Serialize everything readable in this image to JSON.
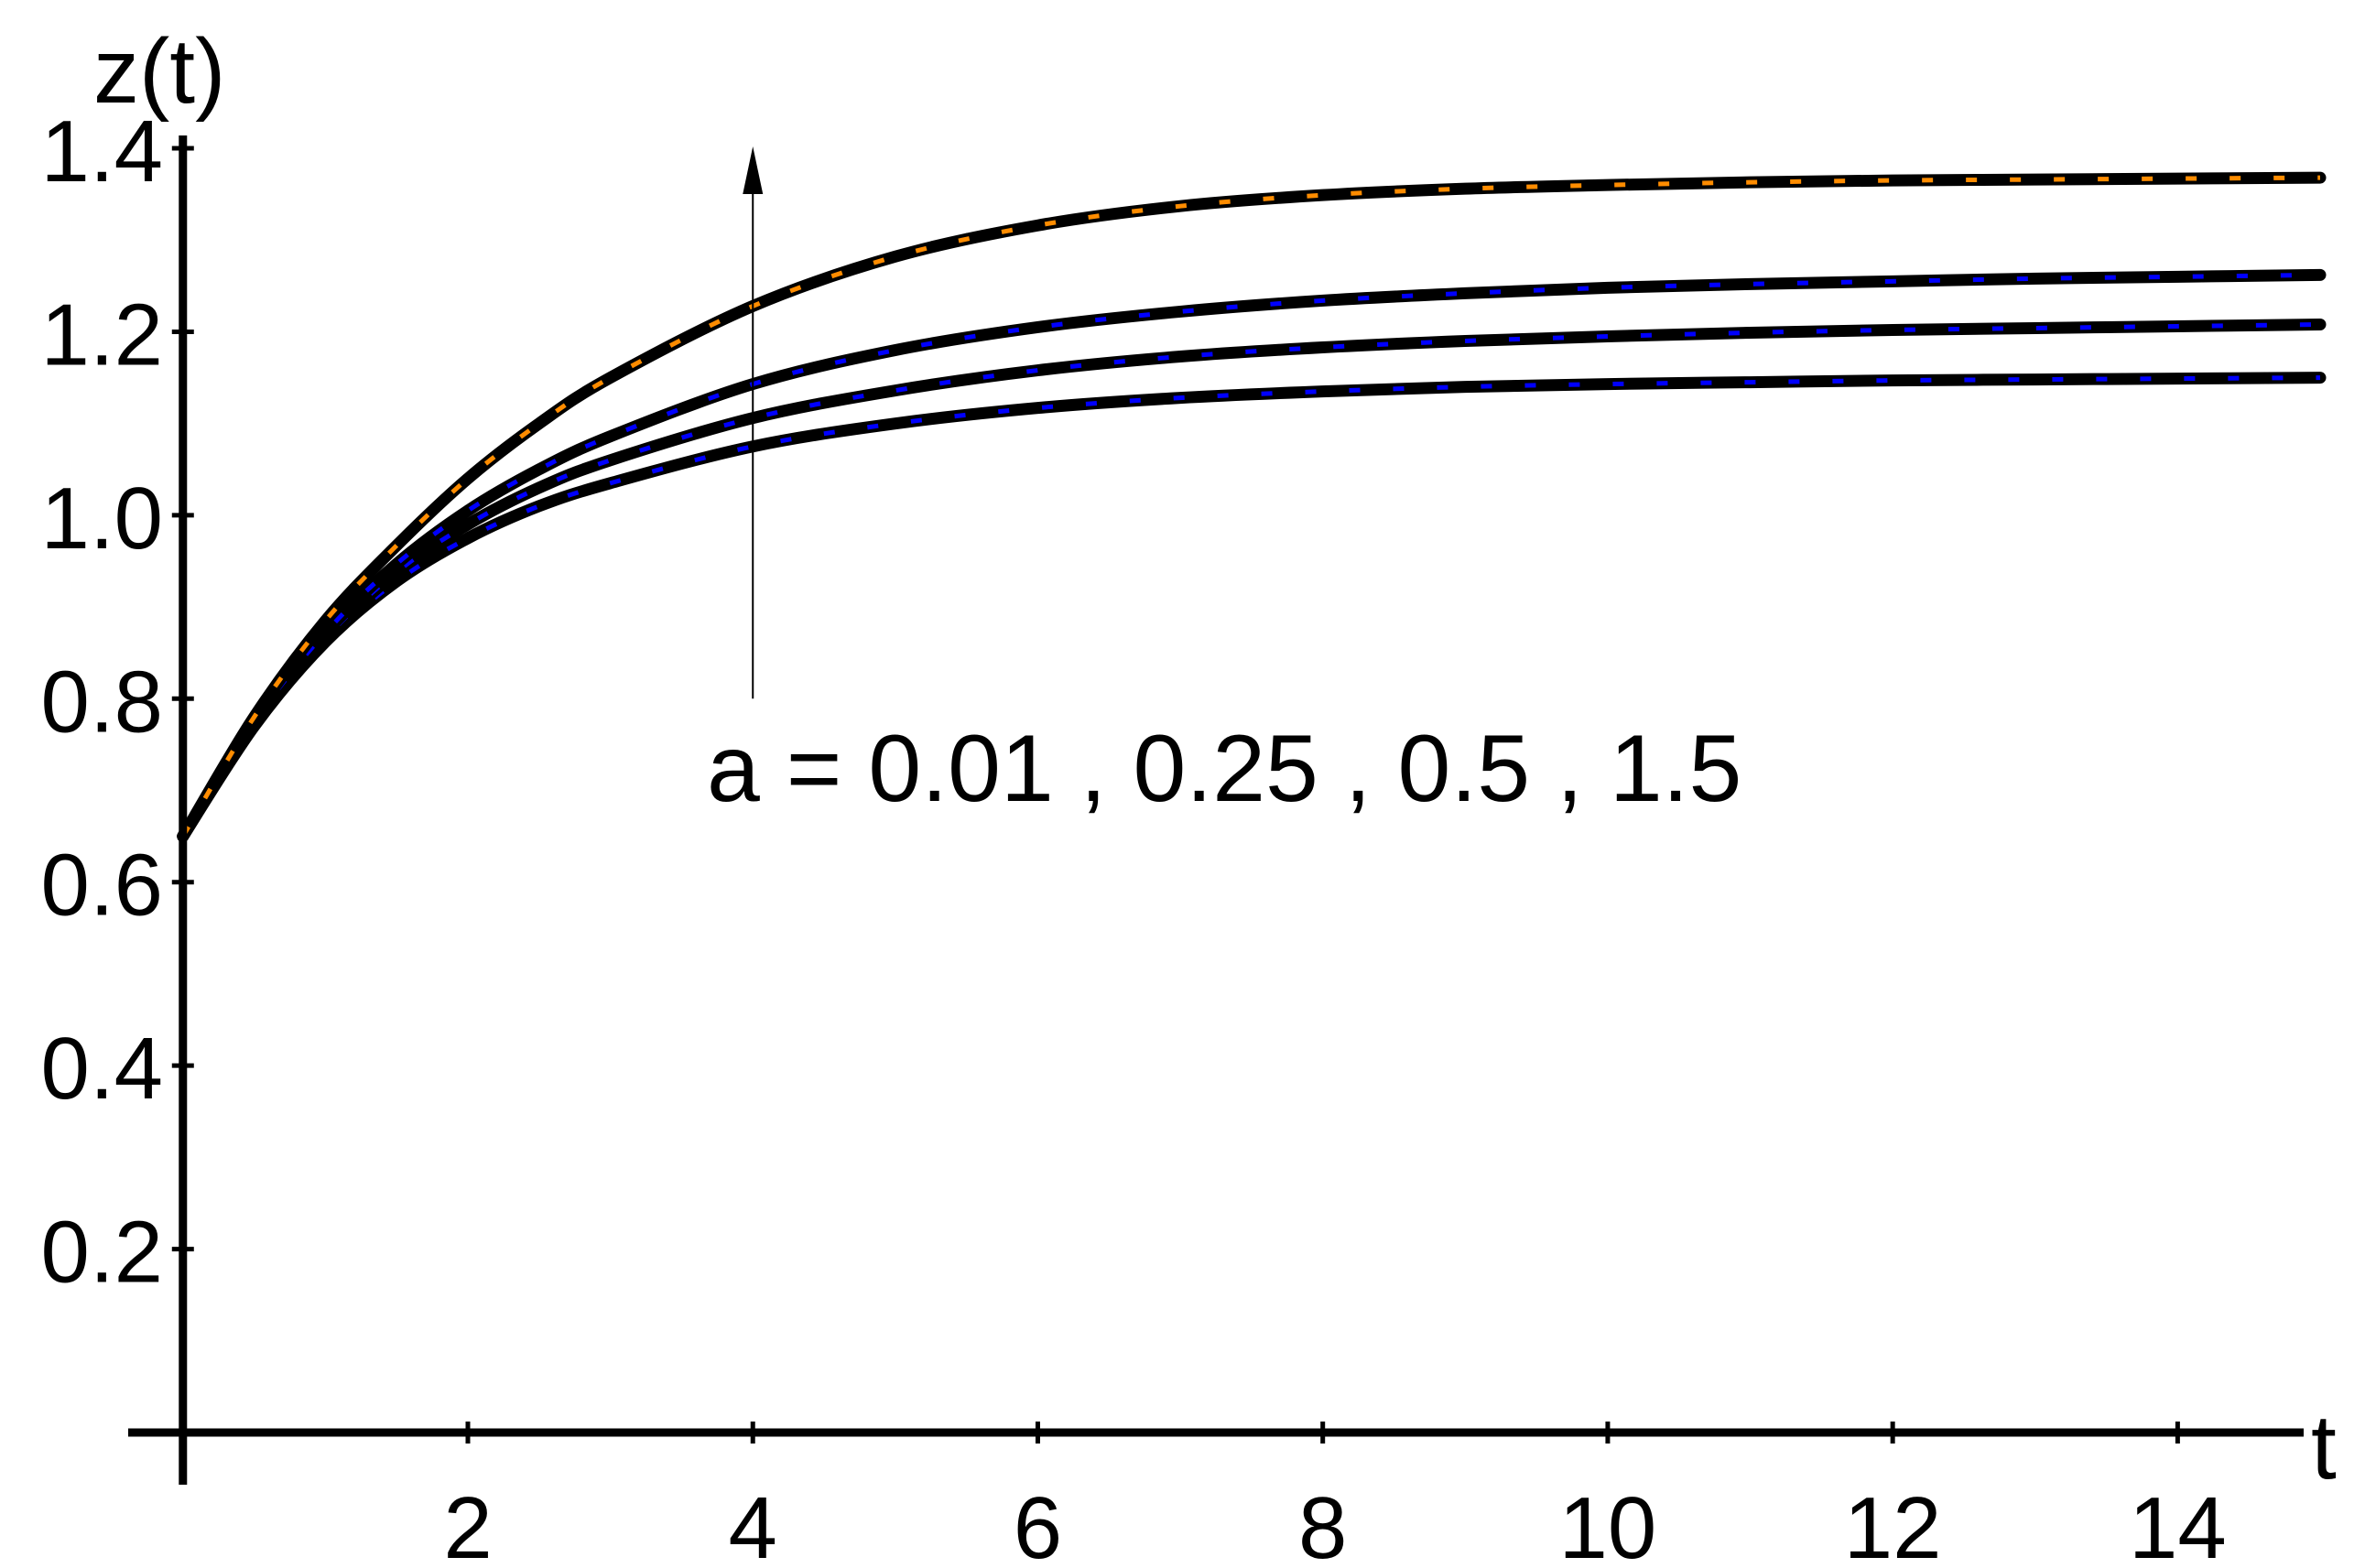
{
  "chart_data": {
    "type": "line",
    "xlabel": "t",
    "ylabel": "z(t)",
    "xlim": [
      -0.05,
      15.0
    ],
    "ylim": [
      0.0,
      1.42
    ],
    "x_ticks": [
      2,
      4,
      6,
      8,
      10,
      12,
      14
    ],
    "x_tick_labels": [
      "2",
      "4",
      "6",
      "8",
      "10",
      "12",
      "14"
    ],
    "y_ticks": [
      0.2,
      0.4,
      0.6,
      0.8,
      1.0,
      1.2,
      1.4
    ],
    "y_tick_labels": [
      "0.2",
      "0.4",
      "0.6",
      "0.8",
      "1.0",
      "1.2",
      "1.4"
    ],
    "grid": false,
    "annotation": {
      "text": "a = 0.01 , 0.25 , 0.5 , 1.5",
      "arrow_x": 4.0,
      "arrow_from_y": 0.8,
      "arrow_to_y": 1.4
    },
    "x": [
      0,
      0.5,
      1,
      1.5,
      2,
      2.5,
      3,
      4,
      5,
      6,
      7,
      8,
      9,
      10,
      11,
      12,
      13,
      14,
      15
    ],
    "series": [
      {
        "values": [
          0.65,
          0.77,
          0.862,
          0.928,
          0.975,
          1.01,
          1.035,
          1.075,
          1.1,
          1.117,
          1.128,
          1.135,
          1.14,
          1.143,
          1.145,
          1.147,
          1.148,
          1.149,
          1.15
        ],
        "color": "#0000ff"
      },
      {
        "values": [
          0.65,
          0.772,
          0.866,
          0.938,
          0.99,
          1.03,
          1.06,
          1.106,
          1.136,
          1.158,
          1.173,
          1.183,
          1.19,
          1.195,
          1.199,
          1.202,
          1.204,
          1.206,
          1.208
        ]
      },
      {
        "values": [
          0.65,
          0.775,
          0.872,
          0.947,
          1.005,
          1.05,
          1.086,
          1.143,
          1.18,
          1.205,
          1.222,
          1.234,
          1.242,
          1.248,
          1.252,
          1.255,
          1.258,
          1.26,
          1.262
        ]
      },
      {
        "values": [
          0.65,
          0.78,
          0.885,
          0.967,
          1.04,
          1.1,
          1.15,
          1.228,
          1.282,
          1.316,
          1.337,
          1.349,
          1.356,
          1.36,
          1.363,
          1.365,
          1.366,
          1.367,
          1.368
        ],
        "color": "#ff8c00"
      }
    ]
  }
}
